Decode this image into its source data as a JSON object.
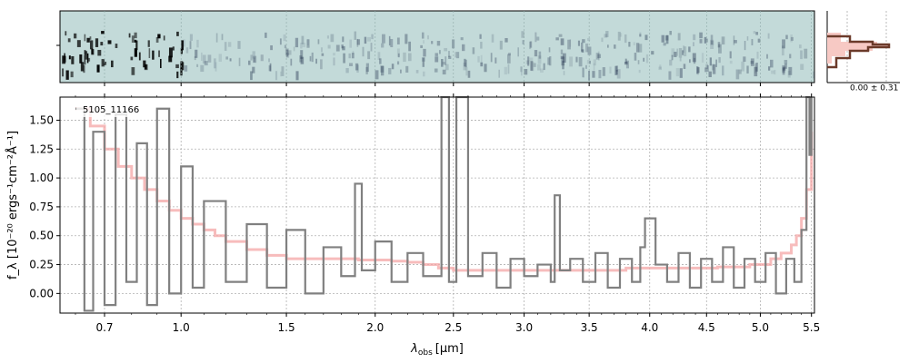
{
  "chart_data": {
    "type": "line",
    "label": "5105_11166",
    "xlabel_main": "λ",
    "xlabel_sub": "obs",
    "xlabel_unit": "[μm]",
    "ylabel": "f_λ [10⁻²⁰ ergs⁻¹cm⁻²Å⁻¹]",
    "xlim": [
      0.55,
      5.53
    ],
    "ylim": [
      -0.17,
      1.7
    ],
    "xscale": "sqrt",
    "grid": true,
    "x_ticks": [
      0.7,
      1.0,
      1.5,
      2.0,
      2.5,
      3.0,
      3.5,
      4.0,
      4.5,
      5.0,
      5.5
    ],
    "x_tick_labels": [
      "0.7",
      "1.0",
      "1.5",
      "2.0",
      "2.5",
      "3.0",
      "3.5",
      "4.0",
      "4.5",
      "5.0",
      "5.5"
    ],
    "y_ticks": [
      0.0,
      0.25,
      0.5,
      0.75,
      1.0,
      1.25,
      1.5
    ],
    "y_tick_labels": [
      "0.00",
      "0.25",
      "0.50",
      "0.75",
      "1.00",
      "1.25",
      "1.50"
    ],
    "histogram_label": "0.00 ± 0.31",
    "colors": {
      "flux": "#808080",
      "model": "#f4a6a6",
      "twod_bg": "#c3dad9",
      "hist_fill": "#f7c9c4",
      "hist_line": "#6b3a2a"
    },
    "series": [
      {
        "x": [
          0.6,
          0.65,
          0.7,
          0.75,
          0.8,
          0.85,
          0.9,
          0.95,
          1.0,
          1.05,
          1.1,
          1.15,
          1.2,
          1.3,
          1.4,
          1.5,
          1.6,
          1.7,
          1.8,
          1.9,
          2.0,
          2.1,
          2.2,
          2.3,
          2.4,
          2.5,
          2.6,
          2.8,
          3.0,
          3.2,
          3.5,
          3.8,
          4.0,
          4.3,
          4.6,
          4.9,
          5.1,
          5.2,
          5.3,
          5.35,
          5.4,
          5.45,
          5.5
        ],
        "values": [
          1.6,
          1.45,
          1.25,
          1.1,
          1.0,
          0.9,
          0.8,
          0.72,
          0.65,
          0.6,
          0.55,
          0.5,
          0.45,
          0.38,
          0.33,
          0.3,
          0.3,
          0.3,
          0.3,
          0.29,
          0.29,
          0.28,
          0.27,
          0.25,
          0.22,
          0.2,
          0.2,
          0.2,
          0.2,
          0.2,
          0.2,
          0.22,
          0.22,
          0.22,
          0.23,
          0.25,
          0.3,
          0.35,
          0.42,
          0.5,
          0.65,
          0.9,
          1.4
        ]
      },
      {
        "x": [
          0.6,
          0.63,
          0.66,
          0.7,
          0.74,
          0.78,
          0.82,
          0.86,
          0.9,
          0.95,
          1.0,
          1.05,
          1.1,
          1.2,
          1.3,
          1.4,
          1.5,
          1.6,
          1.7,
          1.8,
          1.88,
          1.92,
          2.0,
          2.1,
          2.2,
          2.3,
          2.42,
          2.47,
          2.52,
          2.6,
          2.7,
          2.8,
          2.9,
          3.0,
          3.1,
          3.2,
          3.23,
          3.27,
          3.35,
          3.45,
          3.55,
          3.65,
          3.75,
          3.85,
          3.92,
          3.96,
          4.05,
          4.15,
          4.25,
          4.35,
          4.45,
          4.55,
          4.65,
          4.75,
          4.85,
          4.95,
          5.05,
          5.15,
          5.25,
          5.33,
          5.4,
          5.45,
          5.48,
          5.5
        ],
        "values": [
          1.6,
          -0.15,
          1.4,
          -0.1,
          1.55,
          0.1,
          1.3,
          -0.1,
          1.6,
          0.0,
          1.1,
          0.05,
          0.8,
          0.1,
          0.6,
          0.05,
          0.55,
          0.0,
          0.4,
          0.15,
          0.95,
          0.2,
          0.45,
          0.1,
          0.35,
          0.15,
          1.7,
          0.1,
          1.7,
          0.15,
          0.35,
          0.05,
          0.3,
          0.15,
          0.25,
          0.1,
          0.85,
          0.2,
          0.3,
          0.1,
          0.35,
          0.05,
          0.3,
          0.1,
          0.4,
          0.65,
          0.25,
          0.1,
          0.35,
          0.05,
          0.3,
          0.1,
          0.4,
          0.05,
          0.3,
          0.1,
          0.35,
          0.0,
          0.3,
          0.1,
          0.55,
          1.7,
          1.2,
          1.7
        ]
      }
    ]
  }
}
